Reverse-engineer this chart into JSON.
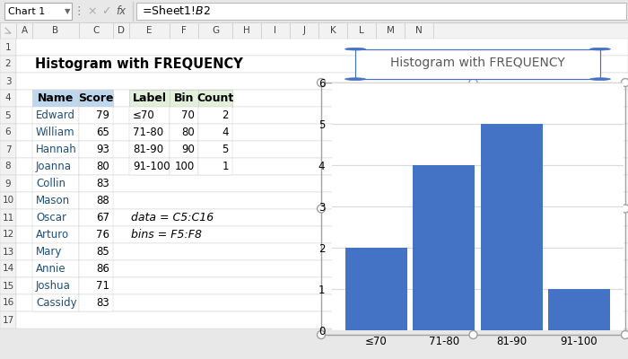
{
  "title": "Histogram with FREQUENCY",
  "spreadsheet_title": "Histogram with FREQUENCY",
  "formula_bar_text": "=Sheet1!$B$2",
  "name_box": "Chart 1",
  "names": [
    "Edward",
    "William",
    "Hannah",
    "Joanna",
    "Collin",
    "Mason",
    "Oscar",
    "Arturo",
    "Mary",
    "Annie",
    "Joshua",
    "Cassidy"
  ],
  "scores": [
    79,
    65,
    93,
    80,
    83,
    88,
    67,
    76,
    85,
    86,
    71,
    83
  ],
  "freq_labels": [
    "≤70",
    "71-80",
    "81-90",
    "91-100"
  ],
  "freq_bins": [
    70,
    80,
    90,
    100
  ],
  "freq_counts": [
    2,
    4,
    5,
    1
  ],
  "bar_color": "#4472C4",
  "grid_color": "#D9D9D9",
  "axis_ylim": [
    0,
    6
  ],
  "yticks": [
    0,
    1,
    2,
    3,
    4,
    5,
    6
  ],
  "annotation_line1": "data = C5:C16",
  "annotation_line2": "bins = F5:F8",
  "col_header_bg": "#BDD7EE",
  "freq_header_bg": "#E2EFDA",
  "name_col_header": "Name",
  "score_col_header": "Score",
  "label_col_header": "Label",
  "bin_col_header": "Bin",
  "count_col_header": "Count",
  "ribbon_bg": "#E8E8E8",
  "sheet_bg": "#FFFFFF",
  "row_header_bg": "#F2F2F2",
  "col_header_text": "#444444",
  "handle_color": "#A0A0A0",
  "handle_fill": "#D0D0D0",
  "blue_handle": "#4472C4",
  "selection_border": "#A0A0A0"
}
